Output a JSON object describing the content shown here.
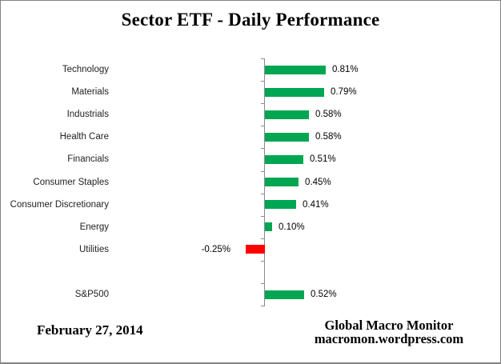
{
  "title": "Sector ETF - Daily Performance",
  "footer": {
    "date": "February 27, 2014",
    "source_line1": "Global Macro Monitor",
    "source_line2": "macromon.wordpress.com"
  },
  "colors": {
    "positive_bar": "#00A651",
    "negative_bar": "#FF0000",
    "axis": "#8C8C8C",
    "frame_border": "#828282",
    "label_text": "#1F1F1F"
  },
  "chart_data": {
    "type": "bar",
    "orientation": "horizontal",
    "title": "Sector ETF - Daily Performance",
    "xlabel": "",
    "ylabel": "",
    "grid": false,
    "value_axis_labels_visible": false,
    "legend_position": "none",
    "categories": [
      "Technology",
      "Materials",
      "Industrials",
      "Health Care",
      "Financials",
      "Consumer Staples",
      "Consumer Discretionary",
      "Energy",
      "Utilities",
      "",
      "S&P500"
    ],
    "values": [
      0.81,
      0.79,
      0.58,
      0.58,
      0.51,
      0.45,
      0.41,
      0.1,
      -0.25,
      null,
      0.52
    ],
    "value_labels": [
      "0.81%",
      "0.79%",
      "0.58%",
      "0.58%",
      "0.51%",
      "0.45%",
      "0.41%",
      "0.10%",
      "-0.25%",
      "",
      "0.52%"
    ],
    "units": "percent"
  }
}
